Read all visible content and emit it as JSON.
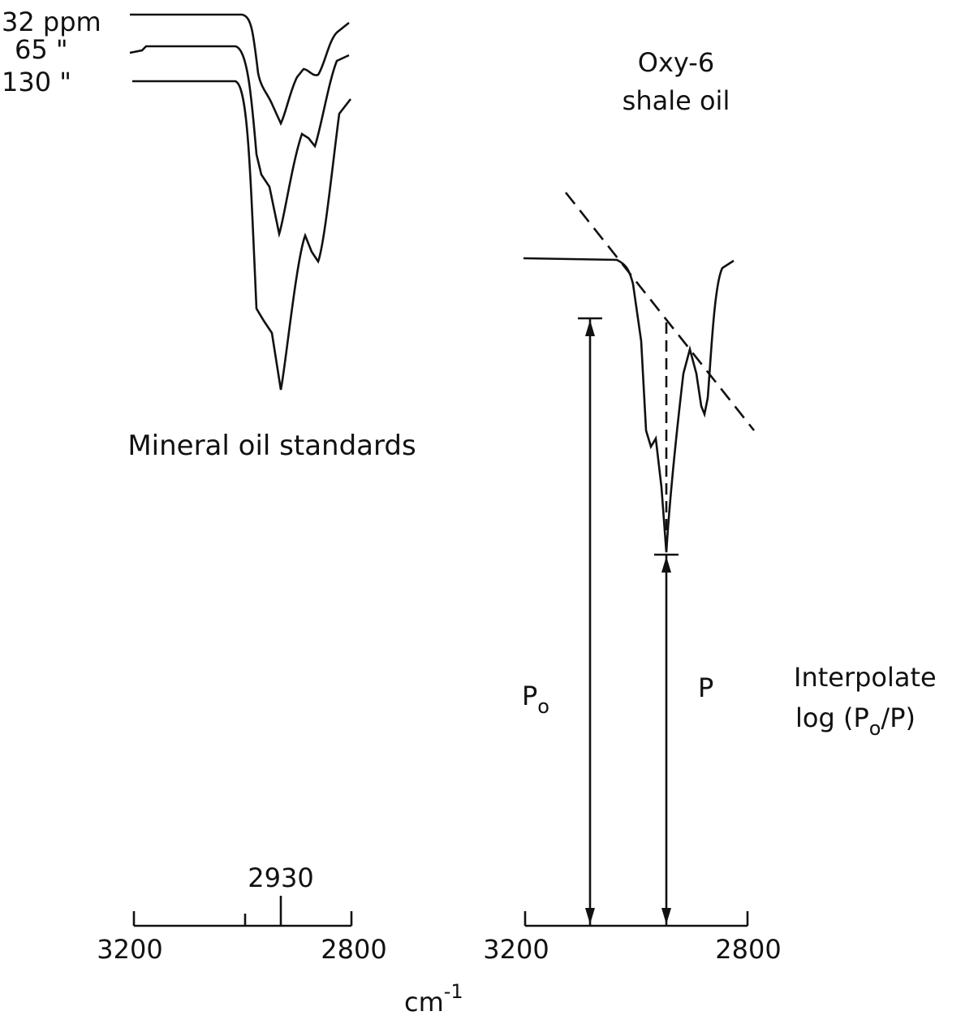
{
  "left": {
    "curve_labels": [
      "32 ppm",
      "65 \"",
      "130 \""
    ],
    "caption": "Mineral oil standards",
    "axis": {
      "marker": "2930",
      "start": "3200",
      "end": "2800"
    }
  },
  "right": {
    "title": [
      "Oxy-6",
      "shale oil"
    ],
    "p0": {
      "main": "P",
      "sub": "o"
    },
    "p": "P",
    "note": {
      "line1": "Interpolate",
      "line2": [
        "log (P",
        "o",
        "/P)"
      ]
    },
    "axis": {
      "start": "3200",
      "end": "2800"
    }
  },
  "unit": {
    "base": "cm",
    "sup": "-1"
  }
}
